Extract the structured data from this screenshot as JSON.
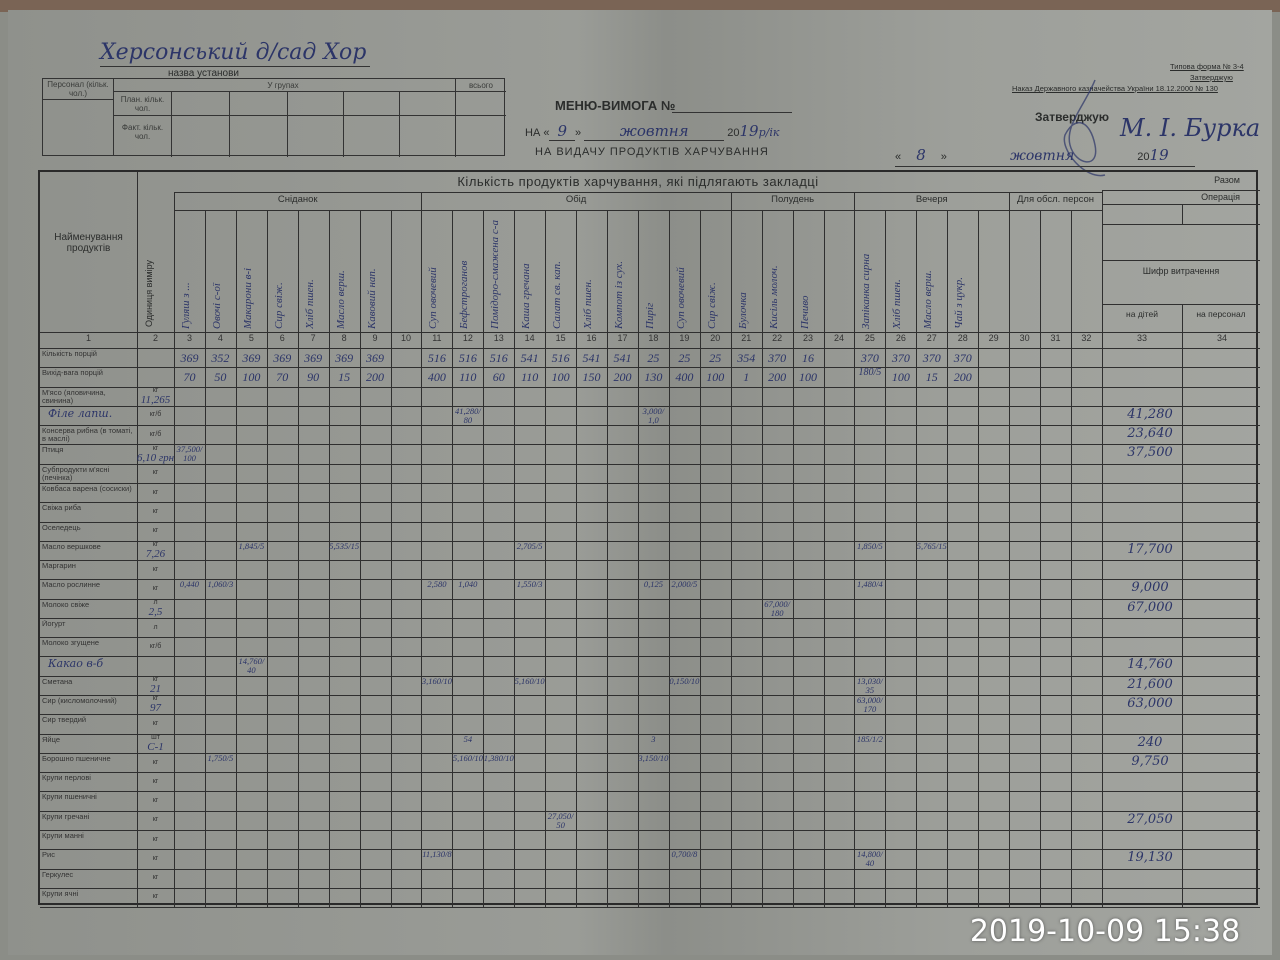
{
  "header": {
    "institution_handwritten": "Херсонський д/сад Хор",
    "institution_caption": "назва установи",
    "personnel_label": "Персонал (кільк. чол.)",
    "groups_label": "У групах",
    "total_label": "всього",
    "plan_label": "План. кільк. чол.",
    "fact_label": "Факт. кільк. чол.",
    "menu_title": "МЕНЮ-ВИМОГА №",
    "on_prefix": "НА «",
    "day": "9",
    "day_suffix": "»",
    "month": "жовтня",
    "year_prefix": "20",
    "year": "19",
    "year_suffix": "р/ік",
    "subtitle": "НА ВИДАЧУ ПРОДУКТІВ ХАРЧУВАННЯ",
    "form_line1": "Типова форма № 3-4",
    "form_line2": "Затверджую",
    "form_line3": "Наказ Державного казначейства України 18.12.2000 № 130",
    "approve_label": "Затверджую",
    "approver_sign": "М. І. Бурка",
    "approve_day": "8",
    "approve_month": "жовтня",
    "approve_year": "19"
  },
  "table": {
    "title": "Кількість продуктів харчування, які підлягають закладці",
    "name_header": "Найменування продуктів",
    "unit_header": "Одиниця виміру",
    "meals": [
      {
        "label": "Сніданок",
        "from": 3,
        "to": 10
      },
      {
        "label": "Обід",
        "from": 11,
        "to": 20
      },
      {
        "label": "Полудень",
        "from": 21,
        "to": 24
      },
      {
        "label": "Вечеря",
        "from": 25,
        "to": 29
      },
      {
        "label": "Для обсл. персон",
        "from": 30,
        "to": 32
      }
    ],
    "dishes": {
      "3": "Гуляш з ...",
      "4": "Овочі с-ої",
      "5": "Макарони в-і",
      "6": "Сир свіж.",
      "7": "Хліб пшен.",
      "8": "Масло верш.",
      "9": "Кавовий нап.",
      "11": "Суп овочевий",
      "12": "Бефстроганов",
      "13": "Помідоро-смажена с-а",
      "14": "Каша гречана",
      "15": "Салат св. кап.",
      "16": "Хліб пшен.",
      "17": "Компот із сух.",
      "18": "Пиріг",
      "19": "Суп овочевий",
      "20": "Сир свіж.",
      "21": "Булочка",
      "22": "Кисіль молоч.",
      "23": "Печиво",
      "25": "Запіканка сирна",
      "26": "Хліб пшен.",
      "27": "Масло верш.",
      "28": "Чай з цукр."
    },
    "right": {
      "total": "Разом",
      "operation": "Операція",
      "cipher": "Шифр витрачення",
      "children": "на дітей",
      "staff": "на персонал"
    },
    "column_numbers": [
      "1",
      "2",
      "3",
      "4",
      "5",
      "6",
      "7",
      "8",
      "9",
      "10",
      "11",
      "12",
      "13",
      "14",
      "15",
      "16",
      "17",
      "18",
      "19",
      "20",
      "21",
      "22",
      "23",
      "24",
      "25",
      "26",
      "27",
      "28",
      "29",
      "30",
      "31",
      "32",
      "33",
      "34"
    ],
    "portions": {
      "3": "369",
      "4": "352",
      "5": "369",
      "6": "369",
      "7": "369",
      "8": "369",
      "9": "369",
      "11": "516",
      "12": "516",
      "13": "516",
      "14": "541",
      "15": "516",
      "16": "541",
      "17": "541",
      "18": "25",
      "19": "25",
      "20": "25",
      "21": "354",
      "22": "370",
      "23": "16",
      "25": "370",
      "26": "370",
      "27": "370",
      "28": "370"
    },
    "weights": {
      "3": "70",
      "4": "50",
      "5": "100",
      "6": "70",
      "7": "90",
      "8": "15",
      "9": "200",
      "11": "400",
      "12": "110",
      "13": "60",
      "14": "110",
      "15": "100",
      "16": "150",
      "17": "200",
      "18": "130",
      "19": "400",
      "20": "100",
      "21": "1",
      "22": "200",
      "23": "100",
      "25": "180/5",
      "26": "100",
      "27": "15",
      "28": "200"
    },
    "rows": [
      {
        "name": "Кількість порцій",
        "unit": "",
        "total": ""
      },
      {
        "name": "Вихід-вага порцій",
        "unit": "",
        "total": ""
      },
      {
        "name": "М'ясо (яловичина, свинина)",
        "unit": "кг",
        "total": "",
        "note": "11,265"
      },
      {
        "name": "",
        "unit": "кг/б",
        "total": "41,280",
        "note": "Філе лапш."
      },
      {
        "name": "Консерва рибна (в томаті, в маслі)",
        "unit": "кг/б",
        "total": "23,640"
      },
      {
        "name": "Птиця",
        "unit": "кг",
        "total": "37,500",
        "note": "6,10 грн"
      },
      {
        "name": "Субпродукти м'ясні (печінка)",
        "unit": "кг",
        "total": ""
      },
      {
        "name": "Ковбаса варена (сосиски)",
        "unit": "кг",
        "total": ""
      },
      {
        "name": "Свіжа риба",
        "unit": "кг",
        "total": ""
      },
      {
        "name": "Оселедець",
        "unit": "кг",
        "total": ""
      },
      {
        "name": "Масло вершкове",
        "unit": "кг",
        "total": "17,700",
        "note": "7,26"
      },
      {
        "name": "Маргарин",
        "unit": "кг",
        "total": ""
      },
      {
        "name": "Масло рослинне",
        "unit": "кг",
        "total": "9,000"
      },
      {
        "name": "Молоко свіже",
        "unit": "л",
        "total": "67,000",
        "note": "2,5"
      },
      {
        "name": "Йогурт",
        "unit": "л",
        "total": ""
      },
      {
        "name": "Молоко згущене",
        "unit": "кг/б",
        "total": ""
      },
      {
        "name": "",
        "unit": "",
        "total": "14,760",
        "note": "Какао в-б"
      },
      {
        "name": "Сметана",
        "unit": "кг",
        "total": "21,600",
        "note": "21"
      },
      {
        "name": "Сир (кисломолочний)",
        "unit": "кг",
        "total": "63,000",
        "note": "97"
      },
      {
        "name": "Сир твердий",
        "unit": "кг",
        "total": ""
      },
      {
        "name": "Яйце",
        "unit": "шт",
        "total": "240",
        "note": "С-1"
      },
      {
        "name": "Борошно пшеничне",
        "unit": "кг",
        "total": "9,750"
      },
      {
        "name": "Крупи перлові",
        "unit": "кг",
        "total": ""
      },
      {
        "name": "Крупи пшеничні",
        "unit": "кг",
        "total": ""
      },
      {
        "name": "Крупи гречані",
        "unit": "кг",
        "total": "27,050"
      },
      {
        "name": "Крупи манні",
        "unit": "кг",
        "total": ""
      },
      {
        "name": "Рис",
        "unit": "кг",
        "total": "19,130"
      },
      {
        "name": "Геркулес",
        "unit": "кг",
        "total": ""
      },
      {
        "name": "Крупи ячні",
        "unit": "кг",
        "total": ""
      }
    ],
    "entries": [
      {
        "row": 3,
        "col": 12,
        "v": "41,280/80"
      },
      {
        "row": 3,
        "col": 18,
        "v": "3,000/1,0"
      },
      {
        "row": 5,
        "col": 3,
        "v": "37,500/100"
      },
      {
        "row": 10,
        "col": 5,
        "v": "1,845/5"
      },
      {
        "row": 10,
        "col": 8,
        "v": "5,535/15"
      },
      {
        "row": 10,
        "col": 14,
        "v": "2,705/5"
      },
      {
        "row": 10,
        "col": 25,
        "v": "1,850/5"
      },
      {
        "row": 10,
        "col": 27,
        "v": "5,765/15"
      },
      {
        "row": 12,
        "col": 3,
        "v": "0,440"
      },
      {
        "row": 12,
        "col": 4,
        "v": "1,060/3"
      },
      {
        "row": 12,
        "col": 11,
        "v": "2,580"
      },
      {
        "row": 12,
        "col": 12,
        "v": "1,040"
      },
      {
        "row": 12,
        "col": 14,
        "v": "1,550/3"
      },
      {
        "row": 12,
        "col": 18,
        "v": "0,125"
      },
      {
        "row": 12,
        "col": 19,
        "v": "2,000/5"
      },
      {
        "row": 12,
        "col": 25,
        "v": "1,480/4"
      },
      {
        "row": 13,
        "col": 22,
        "v": "67,000/180"
      },
      {
        "row": 16,
        "col": 5,
        "v": "14,760/40"
      },
      {
        "row": 17,
        "col": 11,
        "v": "3,160/10"
      },
      {
        "row": 17,
        "col": 14,
        "v": "5,160/10"
      },
      {
        "row": 17,
        "col": 19,
        "v": "0,150/10"
      },
      {
        "row": 17,
        "col": 25,
        "v": "13,030/35"
      },
      {
        "row": 18,
        "col": 25,
        "v": "63,000/170"
      },
      {
        "row": 20,
        "col": 12,
        "v": "54"
      },
      {
        "row": 20,
        "col": 18,
        "v": "3"
      },
      {
        "row": 20,
        "col": 25,
        "v": "185/1/2"
      },
      {
        "row": 21,
        "col": 4,
        "v": "1,750/5"
      },
      {
        "row": 21,
        "col": 12,
        "v": "5,160/10"
      },
      {
        "row": 21,
        "col": 13,
        "v": "1,380/10"
      },
      {
        "row": 21,
        "col": 18,
        "v": "3,150/10"
      },
      {
        "row": 24,
        "col": 15,
        "v": "27,050/50"
      },
      {
        "row": 26,
        "col": 11,
        "v": "11,130/8"
      },
      {
        "row": 26,
        "col": 19,
        "v": "0,700/8"
      },
      {
        "row": 26,
        "col": 25,
        "v": "14,800/40"
      }
    ]
  },
  "timestamp": "2019-10-09 15:38",
  "colors": {
    "ink": "#2c3568",
    "paper": "#9a9c97",
    "lines": "#2f2f2f",
    "timestamp": "#ffffff"
  }
}
